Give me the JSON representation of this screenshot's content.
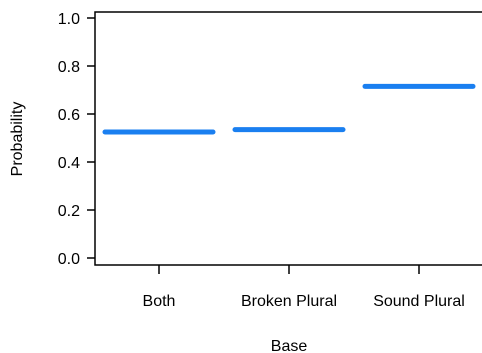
{
  "chart_data": {
    "type": "line",
    "categories": [
      "Both",
      "Broken Plural",
      "Sound Plural"
    ],
    "values": [
      0.525,
      0.535,
      0.715
    ],
    "xlabel": "Base",
    "ylabel": "Probability",
    "ylim": [
      0,
      1
    ],
    "yticks": [
      0.0,
      0.2,
      0.4,
      0.6,
      0.8,
      1.0
    ],
    "ytick_labels": [
      "0.0",
      "0.2",
      "0.4",
      "0.6",
      "0.8",
      "1.0"
    ],
    "grid": false,
    "legend": "none",
    "colors": {
      "series": "#1a7ff0",
      "axis": "#000000"
    }
  }
}
